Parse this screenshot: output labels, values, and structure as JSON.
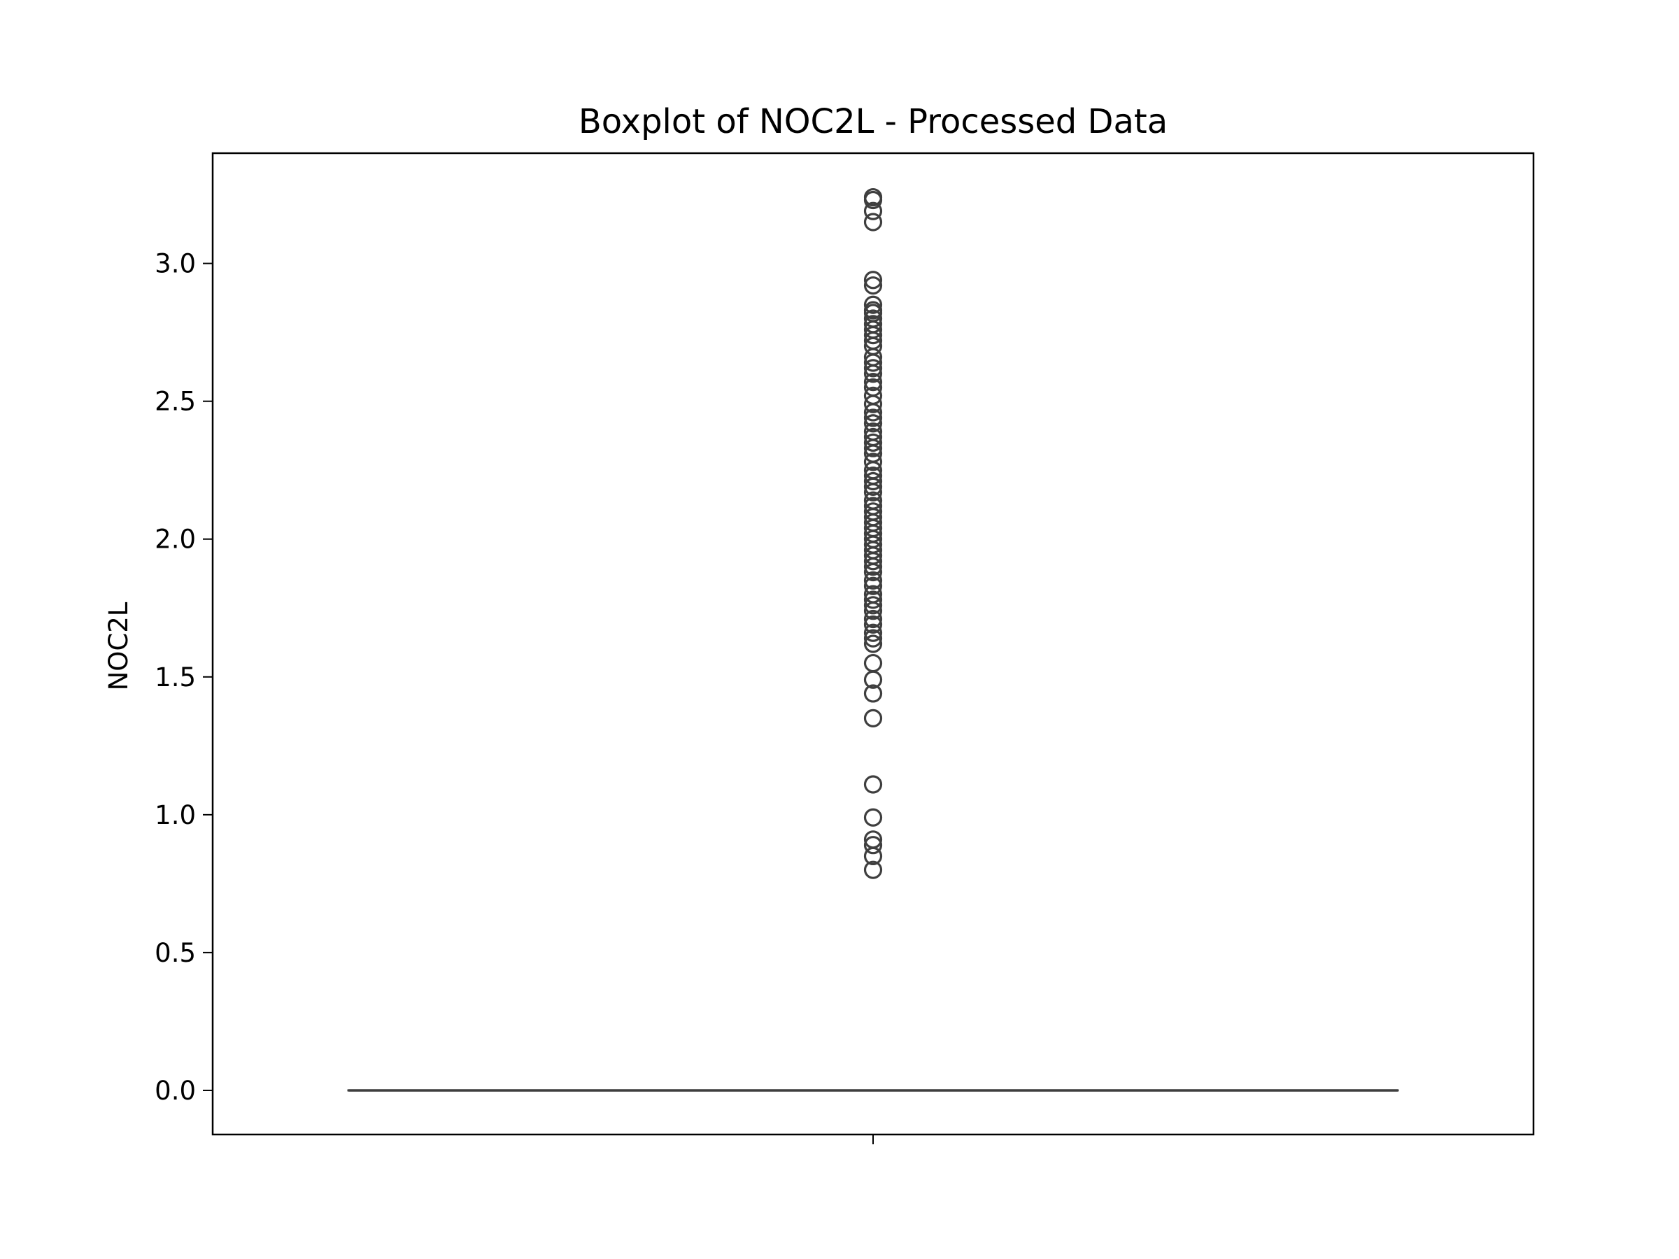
{
  "chart_data": {
    "type": "box",
    "title": "Boxplot of NOC2L - Processed Data",
    "xlabel": "",
    "ylabel": "NOC2L",
    "ylim": [
      -0.16,
      3.4
    ],
    "yticks": [
      0.0,
      0.5,
      1.0,
      1.5,
      2.0,
      2.5,
      3.0
    ],
    "ytick_labels": [
      "0.0",
      "0.5",
      "1.0",
      "1.5",
      "2.0",
      "2.5",
      "3.0"
    ],
    "grid": false,
    "box_color": "#3f3f3f",
    "box": {
      "min": 0.0,
      "q1": 0.0,
      "median": 0.0,
      "q3": 0.0,
      "max": 0.0
    },
    "outliers": [
      3.24,
      3.23,
      3.19,
      3.15,
      2.94,
      2.92,
      2.85,
      2.83,
      2.82,
      2.8,
      2.78,
      2.76,
      2.74,
      2.72,
      2.7,
      2.66,
      2.64,
      2.62,
      2.6,
      2.57,
      2.55,
      2.52,
      2.49,
      2.46,
      2.44,
      2.42,
      2.39,
      2.37,
      2.35,
      2.33,
      2.31,
      2.28,
      2.25,
      2.23,
      2.21,
      2.19,
      2.17,
      2.14,
      2.12,
      2.1,
      2.08,
      2.06,
      2.04,
      2.02,
      2.0,
      1.98,
      1.96,
      1.94,
      1.92,
      1.9,
      1.88,
      1.85,
      1.83,
      1.8,
      1.78,
      1.76,
      1.74,
      1.71,
      1.69,
      1.66,
      1.64,
      1.62,
      1.55,
      1.49,
      1.44,
      1.35,
      1.11,
      0.99,
      0.91,
      0.89,
      0.85,
      0.8
    ]
  }
}
